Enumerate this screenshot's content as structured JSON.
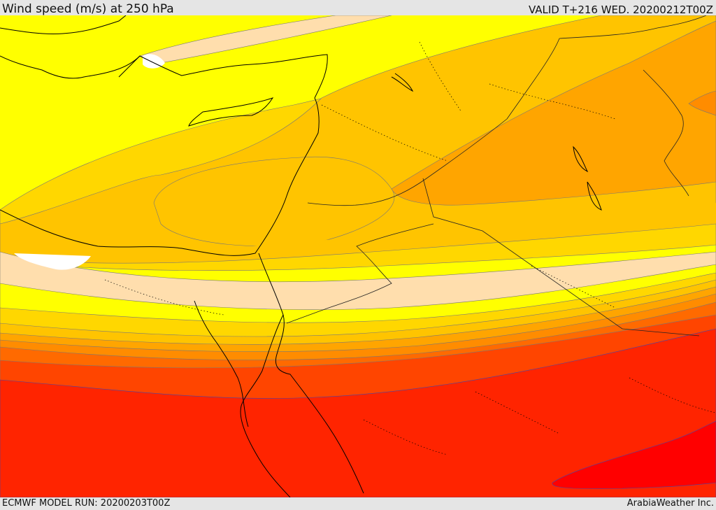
{
  "header": {
    "title": "Wind speed (m/s) at 250 hPa",
    "valid": "VALID T+216 WED. 20200212T00Z"
  },
  "footer": {
    "model_run": "ECMWF MODEL RUN: 20200203T00Z",
    "brand": "ArabiaWeather Inc."
  },
  "colors": {
    "band_white": "#ffffff",
    "band_peach": "#ffdead",
    "band_yellow": "#ffff00",
    "band_gold": "#ffd700",
    "band_amber": "#ffc400",
    "band_orange_light": "#ffa500",
    "band_orange": "#ff8c00",
    "band_orange_dark": "#ff6a00",
    "band_red_orange": "#ff4500",
    "band_red": "#ff2400",
    "band_deep_red": "#ff0000"
  }
}
